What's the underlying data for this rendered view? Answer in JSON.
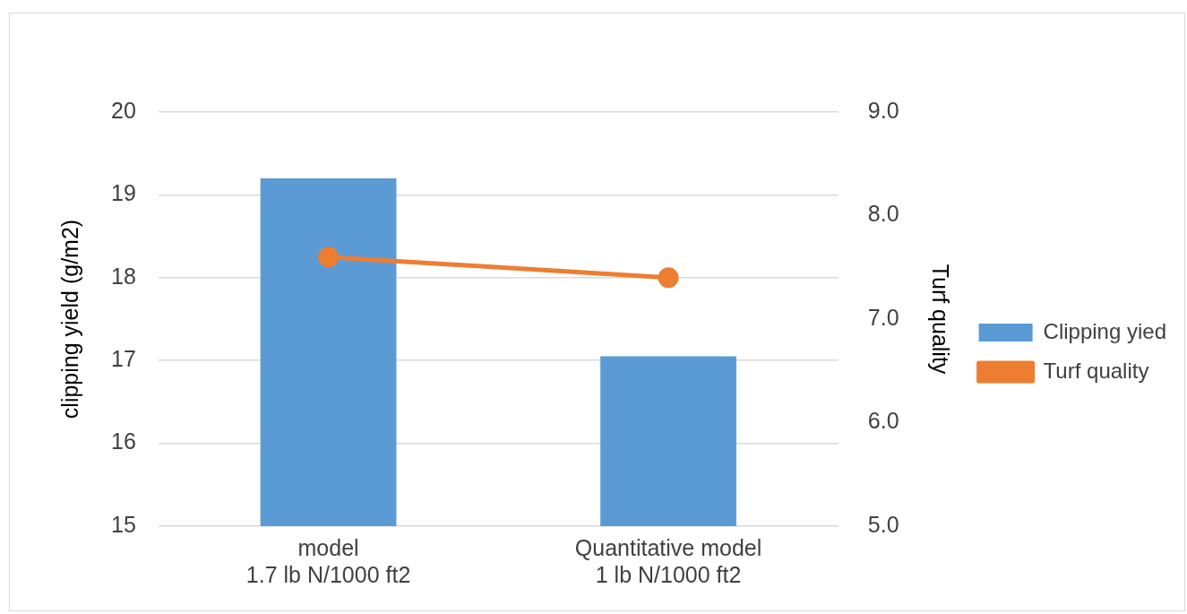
{
  "chart_data": {
    "type": "bar",
    "categories": [
      "model\n1.7 lb N/1000 ft2",
      "Quantitative model\n1 lb N/1000 ft2"
    ],
    "series": [
      {
        "name": "Clipping yied",
        "color": "#5b9bd5",
        "values": [
          19.2,
          17.05
        ]
      },
      {
        "name": "Turf quality",
        "type": "line",
        "axis": "y2",
        "color": "#ed7d31",
        "values": [
          7.6,
          7.4
        ]
      }
    ],
    "ylabel": "clipping yield (g/m2)",
    "y2label": "Turf quality",
    "ylim": [
      15,
      20
    ],
    "yticks": [
      15,
      16,
      17,
      18,
      19,
      20
    ],
    "y2lim": [
      5,
      9
    ],
    "y2ticks": [
      {
        "value": 5,
        "label": "5.0"
      },
      {
        "value": 6,
        "label": "6.0"
      },
      {
        "value": 7,
        "label": "7.0"
      },
      {
        "value": 8,
        "label": "8.0"
      },
      {
        "value": 9,
        "label": "9.0"
      }
    ],
    "grid": "y",
    "legend": "right",
    "marker": "circle"
  }
}
